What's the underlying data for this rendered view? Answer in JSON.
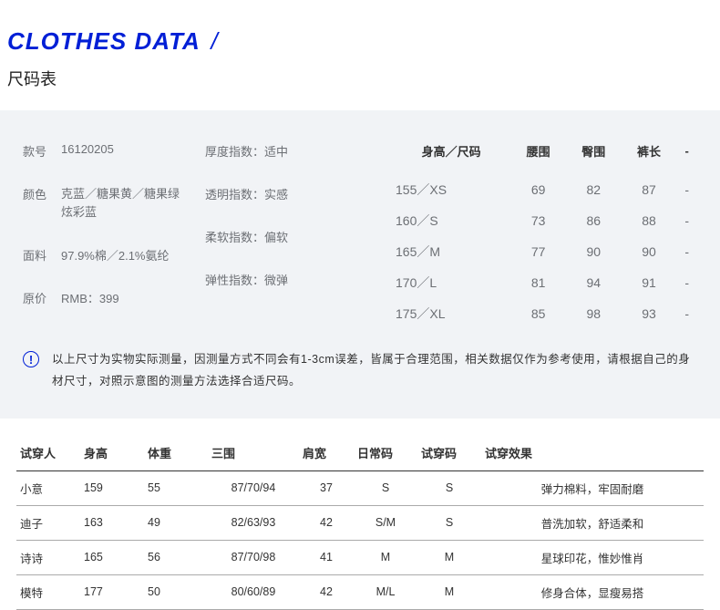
{
  "header": {
    "title_en": "CLOTHES DATA",
    "slash": "/",
    "title_cn": "尺码表"
  },
  "product": {
    "items": [
      {
        "label": "款号",
        "value": "16120205"
      },
      {
        "label": "颜色",
        "value": "克蓝／糖果黄／糖果绿 炫彩蓝"
      },
      {
        "label": "面料",
        "value": "97.9%棉／2.1%氨纶"
      },
      {
        "label": "原价",
        "value": "RMB：399"
      }
    ],
    "indices": [
      {
        "label": "厚度指数：",
        "value": "适中"
      },
      {
        "label": "透明指数：",
        "value": "实感"
      },
      {
        "label": "柔软指数：",
        "value": "偏软"
      },
      {
        "label": "弹性指数：",
        "value": "微弹"
      }
    ]
  },
  "sizeTable": {
    "headers": [
      "身高／尺码",
      "腰围",
      "臀围",
      "裤长",
      "-"
    ],
    "rows": [
      [
        "155／XS",
        "69",
        "82",
        "87",
        "-"
      ],
      [
        "160／S",
        "73",
        "86",
        "88",
        "-"
      ],
      [
        "165／M",
        "77",
        "90",
        "90",
        "-"
      ],
      [
        "170／L",
        "81",
        "94",
        "91",
        "-"
      ],
      [
        "175／XL",
        "85",
        "98",
        "93",
        "-"
      ]
    ]
  },
  "notice": {
    "text": "以上尺寸为实物实际测量，因测量方式不同会有1-3cm误差，皆属于合理范围，相关数据仅作为参考使用，请根据自己的身材尺寸，对照示意图的测量方法选择合适尺码。"
  },
  "fitTable": {
    "headers": [
      "试穿人",
      "身高",
      "体重",
      "三围",
      "肩宽",
      "日常码",
      "试穿码",
      "试穿效果"
    ],
    "rows": [
      [
        "小意",
        "159",
        "55",
        "87/70/94",
        "37",
        "S",
        "S",
        "弹力棉料，牢固耐磨"
      ],
      [
        "迪子",
        "163",
        "49",
        "82/63/93",
        "42",
        "S/M",
        "S",
        "普洗加软，舒适柔和"
      ],
      [
        "诗诗",
        "165",
        "56",
        "87/70/98",
        "41",
        "M",
        "M",
        "星球印花，惟妙惟肖"
      ],
      [
        "模特",
        "177",
        "50",
        "80/60/89",
        "42",
        "M/L",
        "M",
        "修身合体，显瘦易搭"
      ]
    ]
  }
}
